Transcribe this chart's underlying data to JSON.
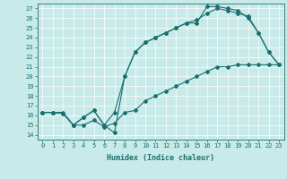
{
  "title": "",
  "xlabel": "Humidex (Indice chaleur)",
  "ylabel": "",
  "background_color": "#c8eae8",
  "line_color": "#1a7070",
  "xlim": [
    -0.5,
    23.5
  ],
  "ylim": [
    13.5,
    27.5
  ],
  "yticks": [
    14,
    15,
    16,
    17,
    18,
    19,
    20,
    21,
    22,
    23,
    24,
    25,
    26,
    27
  ],
  "xticks": [
    0,
    1,
    2,
    3,
    4,
    5,
    6,
    7,
    8,
    9,
    10,
    11,
    12,
    13,
    14,
    15,
    16,
    17,
    18,
    19,
    20,
    21,
    22,
    23
  ],
  "line1_x": [
    0,
    1,
    2,
    3,
    4,
    5,
    6,
    7,
    8,
    9,
    10,
    11,
    12,
    13,
    14,
    15,
    16,
    17,
    18,
    19,
    20,
    21,
    22,
    23
  ],
  "line1_y": [
    16.3,
    16.3,
    16.3,
    15.0,
    15.0,
    15.5,
    14.8,
    15.2,
    16.3,
    16.5,
    17.5,
    18.0,
    18.5,
    19.0,
    19.5,
    20.0,
    20.5,
    21.0,
    21.0,
    21.2,
    21.2,
    21.2,
    21.2,
    21.2
  ],
  "line2_x": [
    0,
    1,
    2,
    3,
    4,
    5,
    6,
    7,
    8,
    9,
    10,
    11,
    12,
    13,
    14,
    15,
    16,
    17,
    18,
    19,
    20,
    21,
    22,
    23
  ],
  "line2_y": [
    16.3,
    16.3,
    16.2,
    15.0,
    15.8,
    16.5,
    15.0,
    14.2,
    20.0,
    22.5,
    23.5,
    24.0,
    24.5,
    25.0,
    25.5,
    25.5,
    27.2,
    27.2,
    27.0,
    26.8,
    26.0,
    24.5,
    22.5,
    21.2
  ],
  "line3_x": [
    0,
    1,
    2,
    3,
    4,
    5,
    6,
    7,
    8,
    9,
    10,
    11,
    12,
    13,
    14,
    15,
    16,
    17,
    18,
    19,
    20,
    21,
    22,
    23
  ],
  "line3_y": [
    16.3,
    16.3,
    16.2,
    15.0,
    15.8,
    16.5,
    15.0,
    16.3,
    20.0,
    22.5,
    23.5,
    24.0,
    24.5,
    25.0,
    25.5,
    25.8,
    26.5,
    27.0,
    26.8,
    26.5,
    26.2,
    24.5,
    22.5,
    21.2
  ]
}
